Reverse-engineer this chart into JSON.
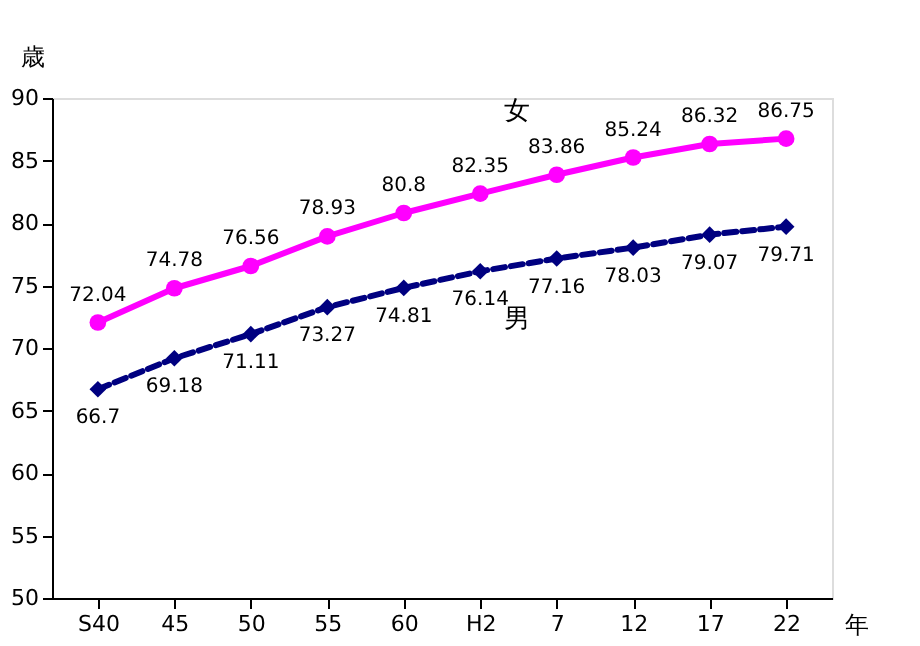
{
  "chart_data": {
    "type": "line",
    "ylabel": "歳",
    "xlabel": "年",
    "categories": [
      "S40",
      "45",
      "50",
      "55",
      "60",
      "H2",
      "7",
      "12",
      "17",
      "22"
    ],
    "series": [
      {
        "name": "女",
        "color": "#ff00ff",
        "marker": "circle",
        "line_style": "solid",
        "values": [
          72.04,
          74.78,
          76.56,
          78.93,
          80.8,
          82.35,
          83.86,
          85.24,
          86.32,
          86.75
        ]
      },
      {
        "name": "男",
        "color": "#000080",
        "marker": "diamond",
        "line_style": "dashed",
        "values": [
          66.7,
          69.18,
          71.11,
          73.27,
          74.81,
          76.14,
          77.16,
          78.03,
          79.07,
          79.71
        ]
      }
    ],
    "ylim": [
      50,
      90
    ],
    "yticks": [
      50,
      55,
      60,
      65,
      70,
      75,
      80,
      85,
      90
    ],
    "data_labels": true
  }
}
